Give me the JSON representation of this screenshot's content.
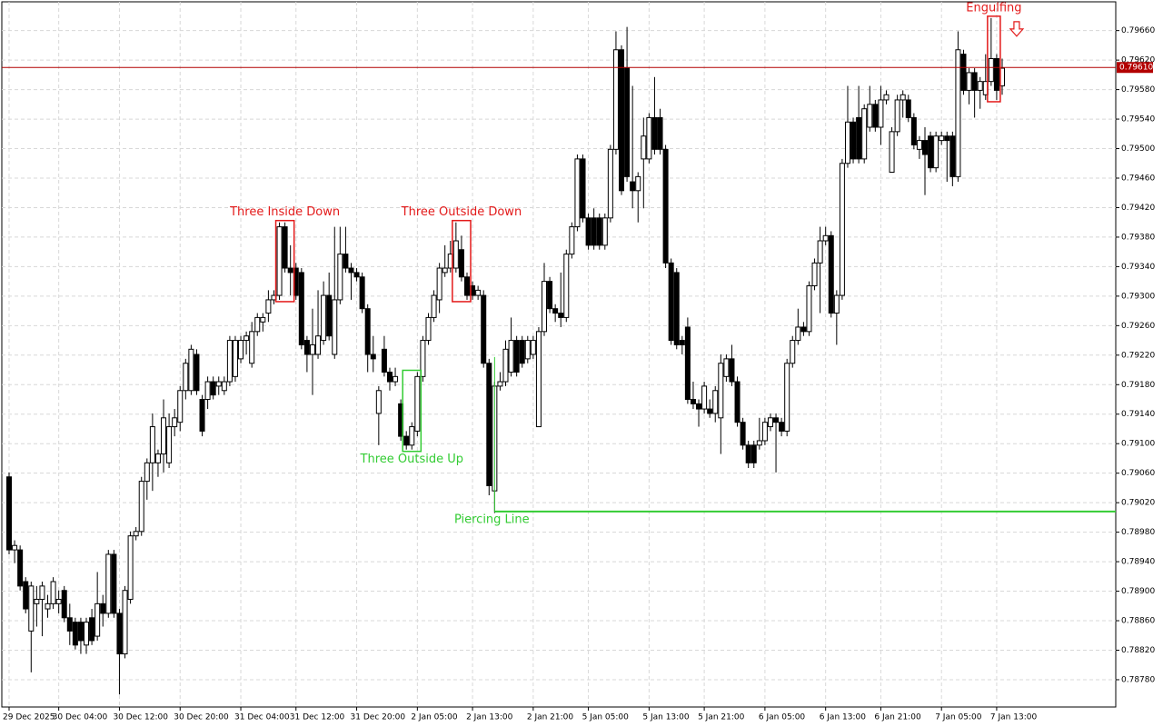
{
  "chart_data": {
    "type": "candlestick",
    "categories": [
      "29 Dec 2025",
      null,
      null,
      null,
      null,
      null,
      null,
      null,
      null,
      "30 Dec 04:00",
      null,
      null,
      null,
      null,
      null,
      null,
      null,
      null,
      null,
      null,
      "30 Dec 12:00",
      null,
      null,
      null,
      null,
      null,
      null,
      null,
      null,
      null,
      null,
      "30 Dec 20:00",
      null,
      null,
      null,
      null,
      null,
      null,
      null,
      null,
      null,
      null,
      "31 Dec 04:00",
      null,
      null,
      null,
      null,
      null,
      null,
      null,
      null,
      null,
      "31 Dec 12:00",
      null,
      null,
      null,
      null,
      null,
      null,
      null,
      null,
      null,
      null,
      "31 Dec 20:00",
      null,
      null,
      null,
      null,
      null,
      null,
      null,
      null,
      null,
      null,
      "2 Jan 05:00",
      null,
      null,
      null,
      null,
      null,
      null,
      null,
      null,
      null,
      "2 Jan 13:00",
      null,
      null,
      null,
      null,
      null,
      null,
      null,
      null,
      null,
      null,
      "2 Jan 21:00",
      null,
      null,
      null,
      null,
      null,
      null,
      null,
      null,
      null,
      "5 Jan 05:00",
      null,
      null,
      null,
      null,
      null,
      null,
      null,
      null,
      null,
      null,
      "5 Jan 13:00",
      null,
      null,
      null,
      null,
      null,
      null,
      null,
      null,
      null,
      "5 Jan 21:00",
      null,
      null,
      null,
      null,
      null,
      null,
      null,
      null,
      null,
      null,
      "6 Jan 05:00",
      null,
      null,
      null,
      null,
      null,
      null,
      null,
      null,
      null,
      null,
      "6 Jan 13:00",
      null,
      null,
      null,
      null,
      null,
      null,
      null,
      null,
      null,
      "6 Jan 21:00",
      null,
      null,
      null,
      null,
      null,
      null,
      null,
      null,
      null,
      null,
      "7 Jan 05:00",
      null,
      null,
      null,
      null,
      null,
      null,
      null,
      null,
      null,
      "7 Jan 13:00",
      null
    ],
    "open": [
      0.79055,
      0.78956,
      0.78956,
      0.78913,
      0.78846,
      0.78883,
      0.78889,
      0.78876,
      0.78883,
      0.78883,
      0.78901,
      0.78864,
      0.78858,
      0.78858,
      0.78827,
      0.78864,
      0.78839,
      0.78883,
      0.7887,
      0.7895,
      0.7887,
      0.78815,
      0.78889,
      0.78975,
      0.78981,
      0.79049,
      0.79074,
      0.79074,
      0.79086,
      0.79074,
      0.79123,
      0.79129,
      0.79172,
      0.79172,
      0.79221,
      0.7916,
      0.7916,
      0.79184,
      0.79178,
      0.79172,
      0.79184,
      0.79191,
      0.79215,
      0.7924,
      0.79209,
      0.79252,
      0.79265,
      0.79277,
      0.79295,
      0.79301,
      0.79394,
      0.79338,
      0.79338,
      0.79332,
      0.7924,
      0.79221,
      0.79221,
      0.7924,
      0.79301,
      0.79221,
      0.79295,
      0.79357,
      0.79338,
      0.79332,
      0.79326,
      0.79283,
      0.79221,
      0.79141,
      0.79228,
      0.79197,
      0.79184,
      0.79154,
      0.7911,
      0.79098,
      0.79117,
      0.79191,
      0.7924,
      0.79271,
      0.79295,
      0.79332,
      0.79338,
      0.79338,
      0.79363,
      0.79326,
      0.79314,
      0.79301,
      0.79301,
      0.79209,
      0.79036,
      0.79178,
      0.79184,
      0.79197,
      0.7924,
      0.7924,
      0.79215,
      0.79221,
      0.79123,
      0.79252,
      0.7932,
      0.79283,
      0.79277,
      0.79271,
      0.79357,
      0.79394,
      0.79486,
      0.79406,
      0.79406,
      0.79406,
      0.79369,
      0.79406,
      0.79499,
      0.79634,
      0.79609,
      0.79455,
      0.79443,
      0.79486,
      0.79486,
      0.79542,
      0.79542,
      0.79499,
      0.79345,
      0.79332,
      0.7924,
      0.79258,
      0.7916,
      0.79154,
      0.79147,
      0.79147,
      0.79141,
      0.79135,
      0.79191,
      0.79215,
      0.79184,
      0.79129,
      0.79098,
      0.79098,
      0.79098,
      0.79104,
      0.79123,
      0.79135,
      0.79129,
      0.79117,
      0.79209,
      0.7924,
      0.79258,
      0.79252,
      0.79314,
      0.79345,
      0.79375,
      0.79382,
      0.79277,
      0.79301,
      0.7948,
      0.79536,
      0.79542,
      0.79486,
      0.79529,
      0.7956,
      0.79529,
      0.79566,
      0.79468,
      0.79523,
      0.79566,
      0.79566,
      0.79542,
      0.79499,
      0.79511,
      0.79517,
      0.79474,
      0.79511,
      0.79517,
      0.79517,
      0.79462,
      0.79628,
      0.79579,
      0.79603,
      0.79579,
      0.79573,
      0.79591,
      0.79622,
      0.79585
    ],
    "high": [
      0.79061,
      0.78969,
      0.78962,
      0.78919,
      0.78913,
      0.78907,
      0.78913,
      0.78895,
      0.78919,
      0.78901,
      0.78907,
      0.78883,
      0.78864,
      0.78864,
      0.78864,
      0.78876,
      0.78926,
      0.78895,
      0.78956,
      0.78956,
      0.78876,
      0.78907,
      0.78981,
      0.78987,
      0.79055,
      0.7908,
      0.79141,
      0.79092,
      0.7916,
      0.79141,
      0.79147,
      0.79178,
      0.79215,
      0.79234,
      0.79228,
      0.79166,
      0.79191,
      0.79191,
      0.79191,
      0.79191,
      0.79246,
      0.79246,
      0.79246,
      0.79252,
      0.79265,
      0.79277,
      0.79277,
      0.79308,
      0.79308,
      0.794,
      0.794,
      0.79369,
      0.79345,
      0.79338,
      0.79246,
      0.79283,
      0.79308,
      0.7932,
      0.79332,
      0.79394,
      0.79394,
      0.79394,
      0.79345,
      0.79338,
      0.79332,
      0.79289,
      0.79246,
      0.79178,
      0.79246,
      0.79203,
      0.79203,
      0.7916,
      0.79117,
      0.79129,
      0.79197,
      0.79246,
      0.79277,
      0.79308,
      0.79345,
      0.79369,
      0.79375,
      0.794,
      0.79382,
      0.79332,
      0.7932,
      0.79314,
      0.79308,
      0.79215,
      0.79184,
      0.79197,
      0.7924,
      0.79271,
      0.79246,
      0.79246,
      0.79246,
      0.79246,
      0.79258,
      0.79345,
      0.79326,
      0.79289,
      0.79332,
      0.79363,
      0.794,
      0.79492,
      0.79492,
      0.79412,
      0.79419,
      0.79412,
      0.79412,
      0.79505,
      0.79659,
      0.7964,
      0.79665,
      0.79585,
      0.79468,
      0.79542,
      0.79548,
      0.79597,
      0.79554,
      0.79505,
      0.79351,
      0.79338,
      0.79246,
      0.79271,
      0.79184,
      0.7916,
      0.79184,
      0.7916,
      0.79178,
      0.79221,
      0.79221,
      0.79234,
      0.79191,
      0.79135,
      0.79104,
      0.79104,
      0.79135,
      0.79135,
      0.79141,
      0.79141,
      0.79135,
      0.79215,
      0.79246,
      0.79283,
      0.79265,
      0.7932,
      0.79351,
      0.79394,
      0.79394,
      0.79388,
      0.79308,
      0.79486,
      0.79585,
      0.79542,
      0.79585,
      0.7956,
      0.79585,
      0.79566,
      0.79585,
      0.79579,
      0.79529,
      0.79573,
      0.79579,
      0.79573,
      0.79548,
      0.79517,
      0.79529,
      0.79523,
      0.79523,
      0.79523,
      0.79523,
      0.79523,
      0.79659,
      0.79634,
      0.79609,
      0.79609,
      0.79597,
      0.79628,
      0.79677,
      0.79628,
      0.79622
    ],
    "low": [
      0.7895,
      0.78938,
      0.78901,
      0.7887,
      0.7879,
      0.78852,
      0.78839,
      0.78864,
      0.78876,
      0.7887,
      0.78858,
      0.78827,
      0.78821,
      0.78815,
      0.78815,
      0.78827,
      0.78833,
      0.78852,
      0.78864,
      0.78864,
      0.7876,
      0.78809,
      0.78883,
      0.78969,
      0.78975,
      0.79024,
      0.79036,
      0.79055,
      0.79061,
      0.79067,
      0.7911,
      0.79117,
      0.7916,
      0.79166,
      0.79166,
      0.7911,
      0.79147,
      0.7916,
      0.79166,
      0.79166,
      0.79178,
      0.79184,
      0.79209,
      0.79221,
      0.79203,
      0.79246,
      0.79252,
      0.79265,
      0.79289,
      0.79295,
      0.79332,
      0.79301,
      0.79295,
      0.79228,
      0.79197,
      0.79166,
      0.79215,
      0.79234,
      0.7924,
      0.79215,
      0.79289,
      0.79332,
      0.79295,
      0.7932,
      0.79277,
      0.79197,
      0.79197,
      0.79098,
      0.79191,
      0.79172,
      0.79178,
      0.79104,
      0.79092,
      0.79092,
      0.7911,
      0.79184,
      0.79234,
      0.79265,
      0.79277,
      0.79326,
      0.79332,
      0.79332,
      0.7932,
      0.79295,
      0.79295,
      0.79295,
      0.79203,
      0.7903,
      0.79006,
      0.79172,
      0.79178,
      0.79191,
      0.79191,
      0.79203,
      0.79209,
      0.79215,
      0.79123,
      0.79246,
      0.79277,
      0.79265,
      0.79258,
      0.79265,
      0.79351,
      0.79388,
      0.794,
      0.79363,
      0.79363,
      0.79363,
      0.79363,
      0.794,
      0.79492,
      0.79437,
      0.79455,
      0.79419,
      0.794,
      0.79419,
      0.7948,
      0.79492,
      0.79492,
      0.79338,
      0.79234,
      0.79228,
      0.79221,
      0.79154,
      0.79147,
      0.79123,
      0.79141,
      0.79135,
      0.79129,
      0.79086,
      0.79184,
      0.79178,
      0.79123,
      0.79092,
      0.79067,
      0.79067,
      0.79092,
      0.79098,
      0.79117,
      0.79061,
      0.7911,
      0.7911,
      0.79203,
      0.79234,
      0.79246,
      0.79246,
      0.79308,
      0.79277,
      0.79369,
      0.79271,
      0.79234,
      0.79295,
      0.79474,
      0.7948,
      0.7948,
      0.7948,
      0.79523,
      0.79523,
      0.79505,
      0.7956,
      0.79468,
      0.79517,
      0.79542,
      0.79536,
      0.79499,
      0.79486,
      0.79437,
      0.79468,
      0.79468,
      0.79505,
      0.79455,
      0.79449,
      0.79455,
      0.79573,
      0.7956,
      0.79542,
      0.79554,
      0.79566,
      0.79585,
      0.79566,
      0.79573
    ],
    "close": [
      0.78956,
      0.78962,
      0.78907,
      0.78876,
      0.78907,
      0.78889,
      0.78907,
      0.78883,
      0.78913,
      0.78889,
      0.78864,
      0.78846,
      0.78827,
      0.78833,
      0.78858,
      0.78833,
      0.78883,
      0.7887,
      0.7895,
      0.7887,
      0.78815,
      0.78901,
      0.78975,
      0.78981,
      0.79049,
      0.79074,
      0.79123,
      0.79086,
      0.79135,
      0.79123,
      0.79135,
      0.79172,
      0.79209,
      0.79228,
      0.79172,
      0.79117,
      0.79184,
      0.79166,
      0.79184,
      0.79184,
      0.7924,
      0.7924,
      0.7924,
      0.79246,
      0.79252,
      0.79271,
      0.79271,
      0.79295,
      0.79301,
      0.79394,
      0.79338,
      0.79332,
      0.79301,
      0.79234,
      0.79221,
      0.79234,
      0.79246,
      0.79301,
      0.79246,
      0.79295,
      0.79357,
      0.79338,
      0.79332,
      0.79326,
      0.79283,
      0.79221,
      0.79215,
      0.79172,
      0.79197,
      0.79184,
      0.79191,
      0.7911,
      0.79098,
      0.79123,
      0.79191,
      0.7924,
      0.79271,
      0.79301,
      0.79338,
      0.79338,
      0.79357,
      0.79375,
      0.79326,
      0.79301,
      0.79301,
      0.79308,
      0.79209,
      0.79043,
      0.79178,
      0.79184,
      0.79228,
      0.7924,
      0.79197,
      0.79209,
      0.7924,
      0.7924,
      0.79252,
      0.7932,
      0.79283,
      0.79277,
      0.79271,
      0.79357,
      0.79394,
      0.79486,
      0.79406,
      0.79369,
      0.79369,
      0.79369,
      0.79406,
      0.79499,
      0.79634,
      0.79443,
      0.79462,
      0.79443,
      0.79462,
      0.79517,
      0.79542,
      0.79499,
      0.79499,
      0.79345,
      0.7924,
      0.79234,
      0.79234,
      0.7916,
      0.79154,
      0.79147,
      0.79178,
      0.79141,
      0.79172,
      0.79209,
      0.79215,
      0.79184,
      0.79129,
      0.79098,
      0.79074,
      0.79074,
      0.79104,
      0.79129,
      0.79135,
      0.79129,
      0.79117,
      0.79209,
      0.7924,
      0.79258,
      0.79252,
      0.79314,
      0.79345,
      0.79375,
      0.79382,
      0.79277,
      0.79301,
      0.7948,
      0.79536,
      0.79486,
      0.79486,
      0.79554,
      0.7956,
      0.79529,
      0.79566,
      0.79573,
      0.79523,
      0.79566,
      0.79573,
      0.79542,
      0.79505,
      0.79511,
      0.79492,
      0.79474,
      0.79517,
      0.79517,
      0.79511,
      0.79462,
      0.79634,
      0.79579,
      0.79603,
      0.79579,
      0.79591,
      0.79591,
      0.79622,
      0.79579,
      0.79609
    ],
    "up_color": "#ffffff",
    "down_color": "#000000",
    "ylim": [
      0.78743,
      0.79699
    ],
    "yticks": [
      {
        "value": 0.7878,
        "label": "0.78780"
      },
      {
        "value": 0.7882,
        "label": "0.78820"
      },
      {
        "value": 0.7886,
        "label": "0.78860"
      },
      {
        "value": 0.789,
        "label": "0.78900"
      },
      {
        "value": 0.7894,
        "label": "0.78940"
      },
      {
        "value": 0.7898,
        "label": "0.78980"
      },
      {
        "value": 0.7902,
        "label": "0.79020"
      },
      {
        "value": 0.7906,
        "label": "0.79060"
      },
      {
        "value": 0.791,
        "label": "0.79100"
      },
      {
        "value": 0.7914,
        "label": "0.79140"
      },
      {
        "value": 0.7918,
        "label": "0.79180"
      },
      {
        "value": 0.7922,
        "label": "0.79220"
      },
      {
        "value": 0.7926,
        "label": "0.79260"
      },
      {
        "value": 0.793,
        "label": "0.79300"
      },
      {
        "value": 0.7934,
        "label": "0.79340"
      },
      {
        "value": 0.7938,
        "label": "0.79380"
      },
      {
        "value": 0.7942,
        "label": "0.79420"
      },
      {
        "value": 0.7946,
        "label": "0.79460"
      },
      {
        "value": 0.795,
        "label": "0.79500"
      },
      {
        "value": 0.7954,
        "label": "0.79540"
      },
      {
        "value": 0.7958,
        "label": "0.79580"
      },
      {
        "value": 0.7962,
        "label": "0.79620"
      },
      {
        "value": 0.7966,
        "label": "0.79660"
      }
    ],
    "grid": true,
    "current_price": {
      "value": 0.7961,
      "label": "0.79610"
    },
    "current_price_color": "#b30000",
    "patterns": [
      {
        "label": "Three Inside Down",
        "color": "#e31a1a",
        "first": 49,
        "last": 51,
        "label_side": "top"
      },
      {
        "label": "Three Outside Up",
        "color": "#33cc33",
        "first": 72,
        "last": 74,
        "label_side": "bottom"
      },
      {
        "label": "Three Outside Down",
        "color": "#e31a1a",
        "first": 81,
        "last": 83,
        "label_side": "top"
      },
      {
        "label": "Piercing Line",
        "color": "#33cc33",
        "first": 87,
        "last": 88,
        "level": 0.79008,
        "label_side": "bottom"
      },
      {
        "label": "Engulfing",
        "color": "#e31a1a",
        "first": 178,
        "last": 179,
        "label_side": "top"
      }
    ]
  }
}
